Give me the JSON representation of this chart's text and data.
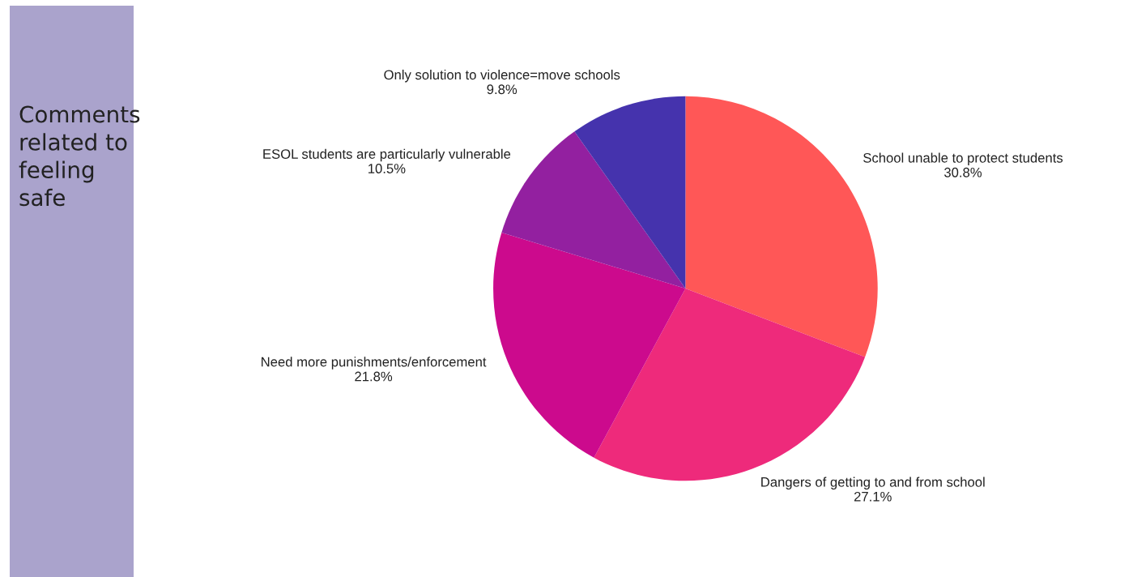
{
  "chart_data": {
    "type": "pie",
    "title": "Comments\nrelated to\nfeeling\nsafe",
    "categories": [
      "School unable to protect students",
      "Dangers of getting to and from school",
      "Need more punishments/enforcement",
      "ESOL students are particularly vulnerable",
      "Only solution to violence=move schools"
    ],
    "values": [
      30.8,
      27.1,
      21.8,
      10.5,
      9.8
    ],
    "value_labels": [
      "30.8%",
      "27.1%",
      "21.8%",
      "10.5%",
      "9.8%"
    ],
    "colors": [
      "#ff5757",
      "#ee2a7b",
      "#cc0a8d",
      "#9320a0",
      "#4533ad"
    ]
  }
}
